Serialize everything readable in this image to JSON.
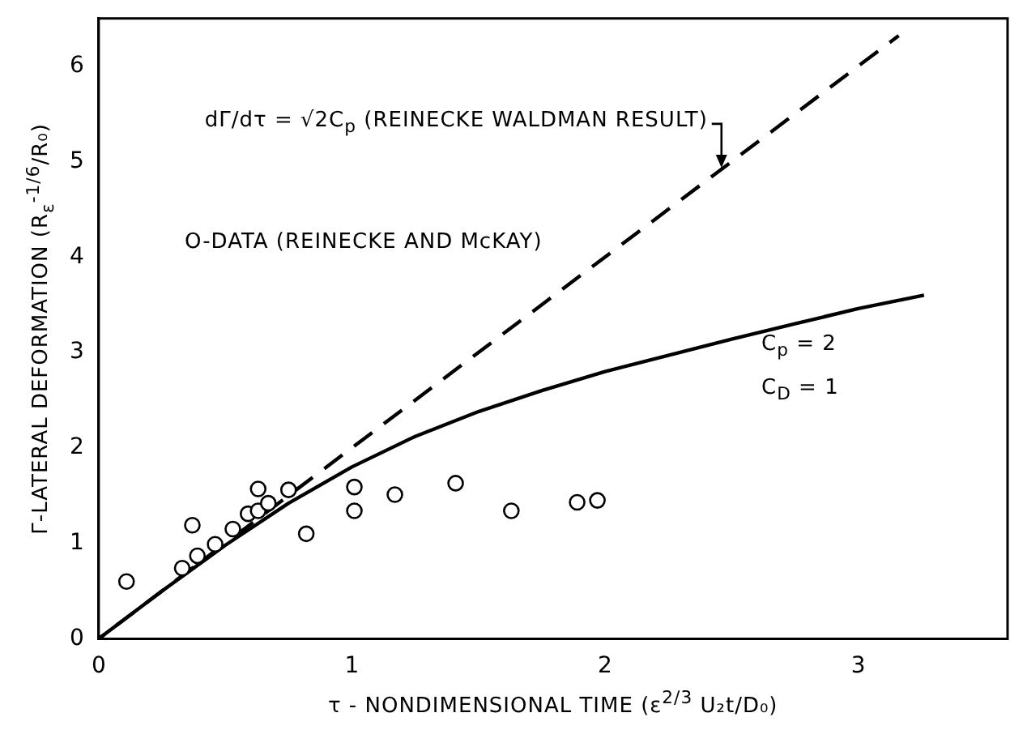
{
  "chart_data": {
    "type": "scatter",
    "xlabel": "τ - NONDIMENSIONAL TIME (ε$^{2/3}$ U₂t/D₀)",
    "ylabel": "Γ-LATERAL DEFORMATION (R$_{ε}$$^{-1/6}$/R₀)",
    "xlim": [
      0,
      3.59
    ],
    "xticks": [
      0,
      1,
      2,
      3
    ],
    "ylim": [
      0,
      6.5
    ],
    "yticks": [
      0,
      1,
      2,
      3,
      4,
      5,
      6
    ],
    "grid": false,
    "legend": false,
    "series": [
      {
        "type": "scatter",
        "marker": "circle",
        "color": "#000000",
        "x": [
          0.11,
          0.33,
          0.37,
          0.39,
          0.46,
          0.53,
          0.59,
          0.63,
          0.63,
          0.67,
          0.75,
          0.82,
          1.01,
          1.01,
          1.17,
          1.41,
          1.63,
          1.89,
          1.97
        ],
        "values": [
          0.6,
          0.74,
          1.19,
          0.87,
          0.99,
          1.15,
          1.31,
          1.57,
          1.34,
          1.42,
          1.56,
          1.1,
          1.59,
          1.34,
          1.51,
          1.63,
          1.34,
          1.43,
          1.45
        ]
      },
      {
        "type": "line",
        "marker": "none",
        "line_style": "dashed",
        "color": "#000000",
        "x": [
          0,
          3.16
        ],
        "values": [
          0,
          6.32
        ]
      },
      {
        "type": "line",
        "marker": "none",
        "line_style": "solid",
        "color": "#000000",
        "x": [
          0,
          0.25,
          0.5,
          0.75,
          1,
          1.25,
          1.5,
          1.75,
          2,
          2.25,
          2.5,
          2.75,
          3,
          3.26
        ],
        "values": [
          0,
          0.5,
          0.98,
          1.42,
          1.8,
          2.12,
          2.38,
          2.6,
          2.8,
          2.97,
          3.14,
          3.3,
          3.46,
          3.6
        ]
      }
    ],
    "annotations": [
      {
        "text": "dΓ/dτ = √2C$_{p}$ (REINECKE WALDMAN RESULT)",
        "x": 2.46,
        "y": 4.92
      },
      "O-DATA (REINECKE AND McKAY)",
      "C$_{p}$ = 2",
      "C$_{D}$ = 1"
    ]
  }
}
